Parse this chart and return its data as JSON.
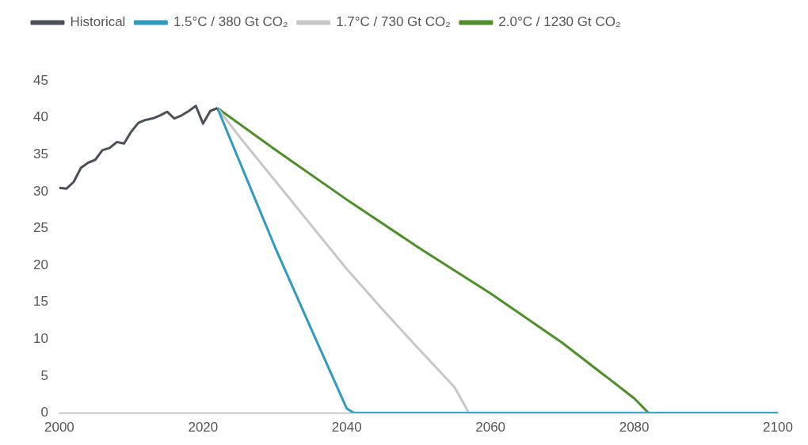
{
  "chart_data": {
    "type": "line",
    "xlim": [
      2000,
      2100
    ],
    "xticks": [
      2000,
      2020,
      2040,
      2060,
      2080,
      2100
    ],
    "ylim": [
      0,
      45
    ],
    "yticks": [
      0,
      5,
      10,
      15,
      20,
      25,
      30,
      35,
      40,
      45
    ],
    "grid": false,
    "legend": "top",
    "marker": "none",
    "line_style": "solid",
    "series": [
      {
        "name": "Historical",
        "color": "#4b5059",
        "x": [
          2000,
          2001,
          2002,
          2003,
          2004,
          2005,
          2006,
          2007,
          2008,
          2009,
          2010,
          2011,
          2012,
          2013,
          2014,
          2015,
          2016,
          2017,
          2018,
          2019,
          2020,
          2021,
          2022
        ],
        "values": [
          30.5,
          30.4,
          31.3,
          33.2,
          33.9,
          34.3,
          35.6,
          35.9,
          36.7,
          36.5,
          38.1,
          39.3,
          39.7,
          39.9,
          40.3,
          40.8,
          39.9,
          40.3,
          40.9,
          41.6,
          39.2,
          40.9,
          41.3
        ]
      },
      {
        "name": "1.5°C / 380 Gt CO₂",
        "color": "#2f9bc1",
        "x": [
          2022,
          2030,
          2035,
          2040,
          2041,
          2100
        ],
        "values": [
          41.3,
          22.5,
          11.5,
          0.6,
          0,
          0
        ]
      },
      {
        "name": "1.7°C / 730 Gt CO₂",
        "color": "#c8c8c8",
        "x": [
          2022,
          2025,
          2030,
          2035,
          2040,
          2045,
          2050,
          2055,
          2057,
          2100
        ],
        "values": [
          41.3,
          37.5,
          31.5,
          25.5,
          19.5,
          14,
          8.7,
          3.5,
          0,
          0
        ]
      },
      {
        "name": "2.0°C / 1230 Gt CO₂",
        "color": "#4e8f2a",
        "x": [
          2022,
          2030,
          2040,
          2050,
          2060,
          2070,
          2080,
          2082,
          2100
        ],
        "values": [
          41.3,
          35.7,
          28.9,
          22.4,
          16.2,
          9.5,
          2,
          0,
          0
        ]
      }
    ]
  }
}
